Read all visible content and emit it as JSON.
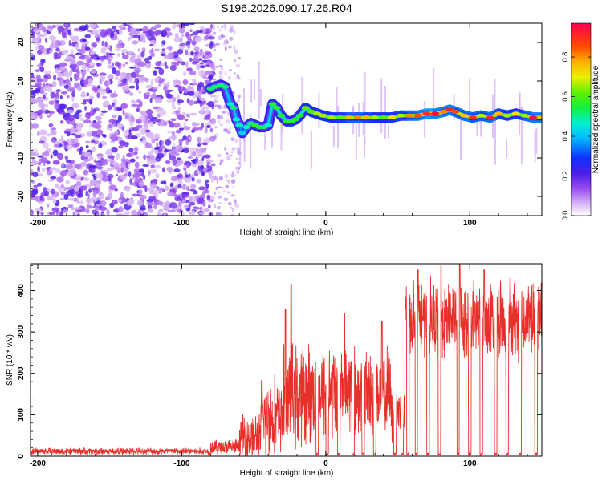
{
  "title": "S196.2026.090.17.26.R04",
  "chart_data": [
    {
      "type": "heatmap",
      "title": "S196.2026.090.17.26.R04",
      "xlabel": "Height of straight line (km)",
      "ylabel": "Frequency (Hz)",
      "xlim": [
        -205,
        150
      ],
      "ylim": [
        -25,
        25
      ],
      "xticks": [
        -200,
        -100,
        0,
        100
      ],
      "yticks": [
        20,
        10,
        0,
        -10,
        -20
      ],
      "colorbar": {
        "label": "Normalized spectral amplitude",
        "range": [
          0,
          0.97
        ],
        "ticks": [
          0.0,
          0.2,
          0.4,
          0.6,
          0.8
        ]
      },
      "noise_region_km": [
        -205,
        -78
      ],
      "sparse_noise_region_km": [
        -78,
        -60
      ],
      "track": [
        {
          "x": -80,
          "f": 8.0,
          "a": 0.45
        },
        {
          "x": -77,
          "f": 8.5,
          "a": 0.45
        },
        {
          "x": -73,
          "f": 9.0,
          "a": 0.45
        },
        {
          "x": -70,
          "f": 8.5,
          "a": 0.45
        },
        {
          "x": -66,
          "f": 4.0,
          "a": 0.4
        },
        {
          "x": -64,
          "f": 3.0,
          "a": 0.45
        },
        {
          "x": -62,
          "f": 0.0,
          "a": 0.4
        },
        {
          "x": -60,
          "f": -1.5,
          "a": 0.4
        },
        {
          "x": -58,
          "f": -3.5,
          "a": 0.35
        },
        {
          "x": -55,
          "f": -2.0,
          "a": 0.4
        },
        {
          "x": -52,
          "f": -1.0,
          "a": 0.45
        },
        {
          "x": -49,
          "f": -1.5,
          "a": 0.5
        },
        {
          "x": -46,
          "f": -2.0,
          "a": 0.5
        },
        {
          "x": -43,
          "f": -2.0,
          "a": 0.45
        },
        {
          "x": -40,
          "f": -1.5,
          "a": 0.4
        },
        {
          "x": -37,
          "f": 4.0,
          "a": 0.5
        },
        {
          "x": -34,
          "f": 3.0,
          "a": 0.5
        },
        {
          "x": -31,
          "f": 1.0,
          "a": 0.5
        },
        {
          "x": -27,
          "f": -0.5,
          "a": 0.5
        },
        {
          "x": -24,
          "f": -0.5,
          "a": 0.5
        },
        {
          "x": -21,
          "f": 0.0,
          "a": 0.5
        },
        {
          "x": -18,
          "f": 1.0,
          "a": 0.5
        },
        {
          "x": -14,
          "f": 3.0,
          "a": 0.55
        },
        {
          "x": -10,
          "f": 2.0,
          "a": 0.55
        },
        {
          "x": -6,
          "f": 1.5,
          "a": 0.6
        },
        {
          "x": -2,
          "f": 1.0,
          "a": 0.6
        },
        {
          "x": 4,
          "f": 0.5,
          "a": 0.6
        },
        {
          "x": 10,
          "f": 0.5,
          "a": 0.55
        },
        {
          "x": 16,
          "f": 0.5,
          "a": 0.7
        },
        {
          "x": 22,
          "f": 0.5,
          "a": 0.75
        },
        {
          "x": 28,
          "f": 0.5,
          "a": 0.7
        },
        {
          "x": 34,
          "f": 0.5,
          "a": 0.6
        },
        {
          "x": 40,
          "f": 0.5,
          "a": 0.55
        },
        {
          "x": 46,
          "f": 0.5,
          "a": 0.65
        },
        {
          "x": 52,
          "f": 1.0,
          "a": 0.6
        },
        {
          "x": 58,
          "f": 1.0,
          "a": 0.75
        },
        {
          "x": 64,
          "f": 1.0,
          "a": 0.8
        },
        {
          "x": 70,
          "f": 1.5,
          "a": 0.85
        },
        {
          "x": 76,
          "f": 1.5,
          "a": 0.9
        },
        {
          "x": 82,
          "f": 2.0,
          "a": 0.75
        },
        {
          "x": 86,
          "f": 2.5,
          "a": 0.85
        },
        {
          "x": 90,
          "f": 2.0,
          "a": 0.8
        },
        {
          "x": 96,
          "f": 1.0,
          "a": 0.7
        },
        {
          "x": 102,
          "f": 0.5,
          "a": 0.85
        },
        {
          "x": 108,
          "f": 1.0,
          "a": 0.6
        },
        {
          "x": 114,
          "f": 0.5,
          "a": 0.85
        },
        {
          "x": 120,
          "f": 1.5,
          "a": 0.7
        },
        {
          "x": 126,
          "f": 1.0,
          "a": 0.6
        },
        {
          "x": 132,
          "f": 1.5,
          "a": 0.65
        },
        {
          "x": 138,
          "f": 1.0,
          "a": 0.6
        },
        {
          "x": 144,
          "f": 0.5,
          "a": 0.9
        },
        {
          "x": 150,
          "f": 0.5,
          "a": 0.7
        }
      ]
    },
    {
      "type": "line",
      "xlabel": "Height of straight line (km)",
      "ylabel": "SNR (10 * v/v)",
      "xlim": [
        -205,
        150
      ],
      "ylim": [
        0,
        465
      ],
      "xticks": [
        -200,
        -100,
        0,
        100
      ],
      "yticks": [
        0,
        100,
        200,
        300,
        400
      ],
      "color": "#e8302a",
      "segments": [
        {
          "x0": -205,
          "x1": -80,
          "mean": 12,
          "var": 10
        },
        {
          "x0": -80,
          "x1": -60,
          "mean": 22,
          "var": 22
        },
        {
          "x0": -60,
          "x1": -45,
          "mean": 45,
          "var": 70
        },
        {
          "x0": -45,
          "x1": -30,
          "mean": 95,
          "var": 120
        },
        {
          "x0": -30,
          "x1": -15,
          "mean": 140,
          "var": 150
        },
        {
          "x0": -15,
          "x1": 0,
          "mean": 150,
          "var": 140
        },
        {
          "x0": 0,
          "x1": 20,
          "mean": 160,
          "var": 130
        },
        {
          "x0": 20,
          "x1": 45,
          "mean": 150,
          "var": 130
        },
        {
          "x0": 45,
          "x1": 55,
          "mean": 110,
          "var": 90
        },
        {
          "x0": 55,
          "x1": 150,
          "mean": 330,
          "var": 110
        }
      ],
      "peaks": [
        {
          "x": -24,
          "y": 415
        },
        {
          "x": -28,
          "y": 355
        },
        {
          "x": 13,
          "y": 345
        },
        {
          "x": 39,
          "y": 325
        },
        {
          "x": 64,
          "y": 450
        },
        {
          "x": 80,
          "y": 460
        },
        {
          "x": 93,
          "y": 465
        },
        {
          "x": 110,
          "y": 450
        },
        {
          "x": 128,
          "y": 430
        }
      ],
      "dips": [
        -6,
        1,
        9,
        19,
        26,
        34,
        48,
        53,
        57,
        63,
        71,
        79,
        92,
        100,
        108,
        118,
        126,
        135,
        146
      ]
    }
  ]
}
